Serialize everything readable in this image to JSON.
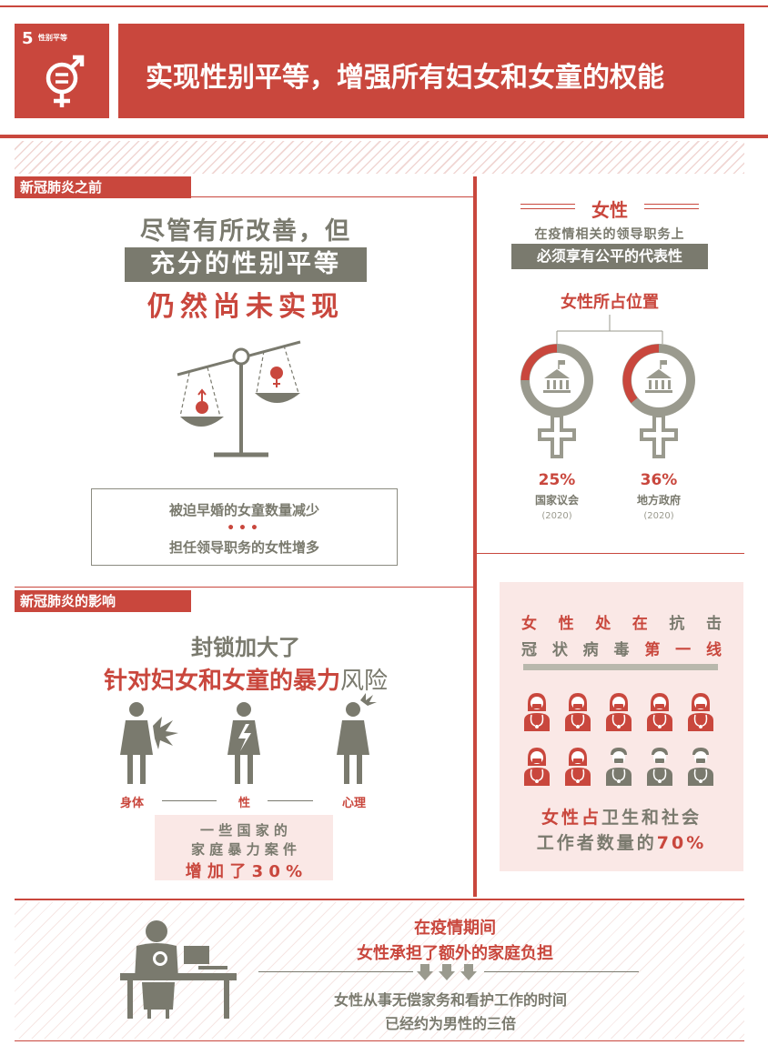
{
  "header": {
    "goal_number": "5",
    "goal_short": "性别平等",
    "title": "实现性别平等，增强所有妇女和女童的权能"
  },
  "before": {
    "label": "新冠肺炎之前",
    "headline_line1": "尽管有所改善，但",
    "headline_line2": "充分的性别平等",
    "headline_line3": "仍然尚未实现",
    "note_line1": "被迫早婚的女童数量减少",
    "dots": "•••",
    "note_line2": "担任领导职务的女性增多"
  },
  "leadership": {
    "title": "女性",
    "subtitle": "在疫情相关的领导职务上",
    "highlight": "必须享有公平的代表性",
    "positions_title": "女性所占位置",
    "items": [
      {
        "value": "25%",
        "label": "国家议会",
        "year": "(2020)",
        "fraction": 0.25
      },
      {
        "value": "36%",
        "label": "地方政府",
        "year": "(2020)",
        "fraction": 0.36
      }
    ]
  },
  "impact": {
    "label": "新冠肺炎的影响",
    "headline_line1": "封锁加大了",
    "headline_red": "针对妇女和女童的暴力",
    "headline_end": "风险",
    "types": [
      "身体",
      "性",
      "心理"
    ],
    "stat_line1": "一 些 国 家 的",
    "stat_line2": "家 庭 暴 力 案 件",
    "stat_line3": "增 加 了 3 0 %"
  },
  "frontline": {
    "line1_red": [
      "女",
      "性",
      "处",
      "在"
    ],
    "line1_gray": [
      "抗",
      "击"
    ],
    "line2_gray": [
      "冠",
      "状",
      "病",
      "毒"
    ],
    "line2_red": [
      "第",
      "一",
      "线"
    ],
    "bottom_red": "女性占",
    "bottom_gray": "卫生和社会",
    "bottom_line2_gray": "工作者数量的",
    "bottom_line2_red": "70%",
    "female_share": 0.7
  },
  "burden": {
    "line1": "在疫情期间",
    "line2": "女性承担了额外的家庭负担",
    "line3": "女性从事无偿家务和看护工作的时间",
    "line4": "已经约为男性的三倍"
  },
  "colors": {
    "red": "#c9473d",
    "gray": "#7a7a6e",
    "pink": "#fae8e6"
  }
}
